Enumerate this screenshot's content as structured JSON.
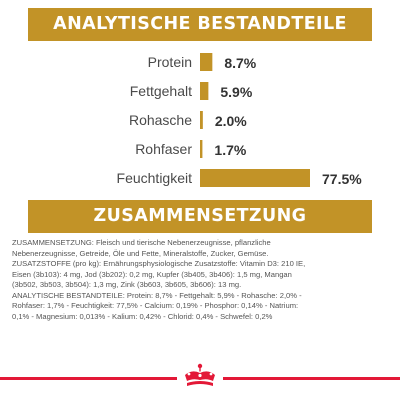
{
  "header": {
    "analysis_title": "ANALYTISCHE BESTANDTEILE",
    "composition_title": "ZUSAMMENSETZUNG"
  },
  "colors": {
    "accent": "#c29327",
    "brand_red": "#e31837",
    "text": "#4a4a4a"
  },
  "chart_data": {
    "type": "bar",
    "orientation": "horizontal",
    "categories": [
      "Protein",
      "Fettgehalt",
      "Rohasche",
      "Rohfaser",
      "Feuchtigkeit"
    ],
    "values": [
      8.7,
      5.9,
      2.0,
      1.7,
      77.5
    ],
    "value_labels": [
      "8.7%",
      "5.9%",
      "2.0%",
      "1.7%",
      "77.5%"
    ],
    "unit": "%",
    "xlim": [
      0,
      77.5
    ],
    "grid": false,
    "legend": "none"
  },
  "composition": {
    "lines": [
      "ZUSAMMENSETZUNG: Fleisch und tierische Nebenerzeugnisse, pflanzliche",
      "Nebenerzeugnisse, Getreide, Öle und Fette, Mineralstoffe, Zucker, Gemüse.",
      "ZUSATZSTOFFE (pro kg): Ernährungsphysiologische Zusatzstoffe: Vitamin D3: 210 IE,",
      "Eisen (3b103): 4 mg, Jod (3b202): 0,2 mg, Kupfer (3b405, 3b406): 1,5 mg, Mangan",
      "(3b502, 3b503, 3b504): 1,3 mg, Zink (3b603, 3b605, 3b606): 13 mg.",
      "ANALYTISCHE BESTANDTEILE: Protein: 8,7% - Fettgehalt: 5,9% - Rohasche: 2,0% -",
      "Rohfaser: 1,7% - Feuchtigkeit: 77,5% - Calcium: 0,19% - Phosphor: 0,14% - Natrium:",
      "0,1% - Magnesium: 0,013% - Kalium: 0,42% - Chlorid: 0,4% - Schwefel: 0,2%"
    ]
  },
  "footer": {
    "logo_icon": "crown-logo-icon"
  }
}
